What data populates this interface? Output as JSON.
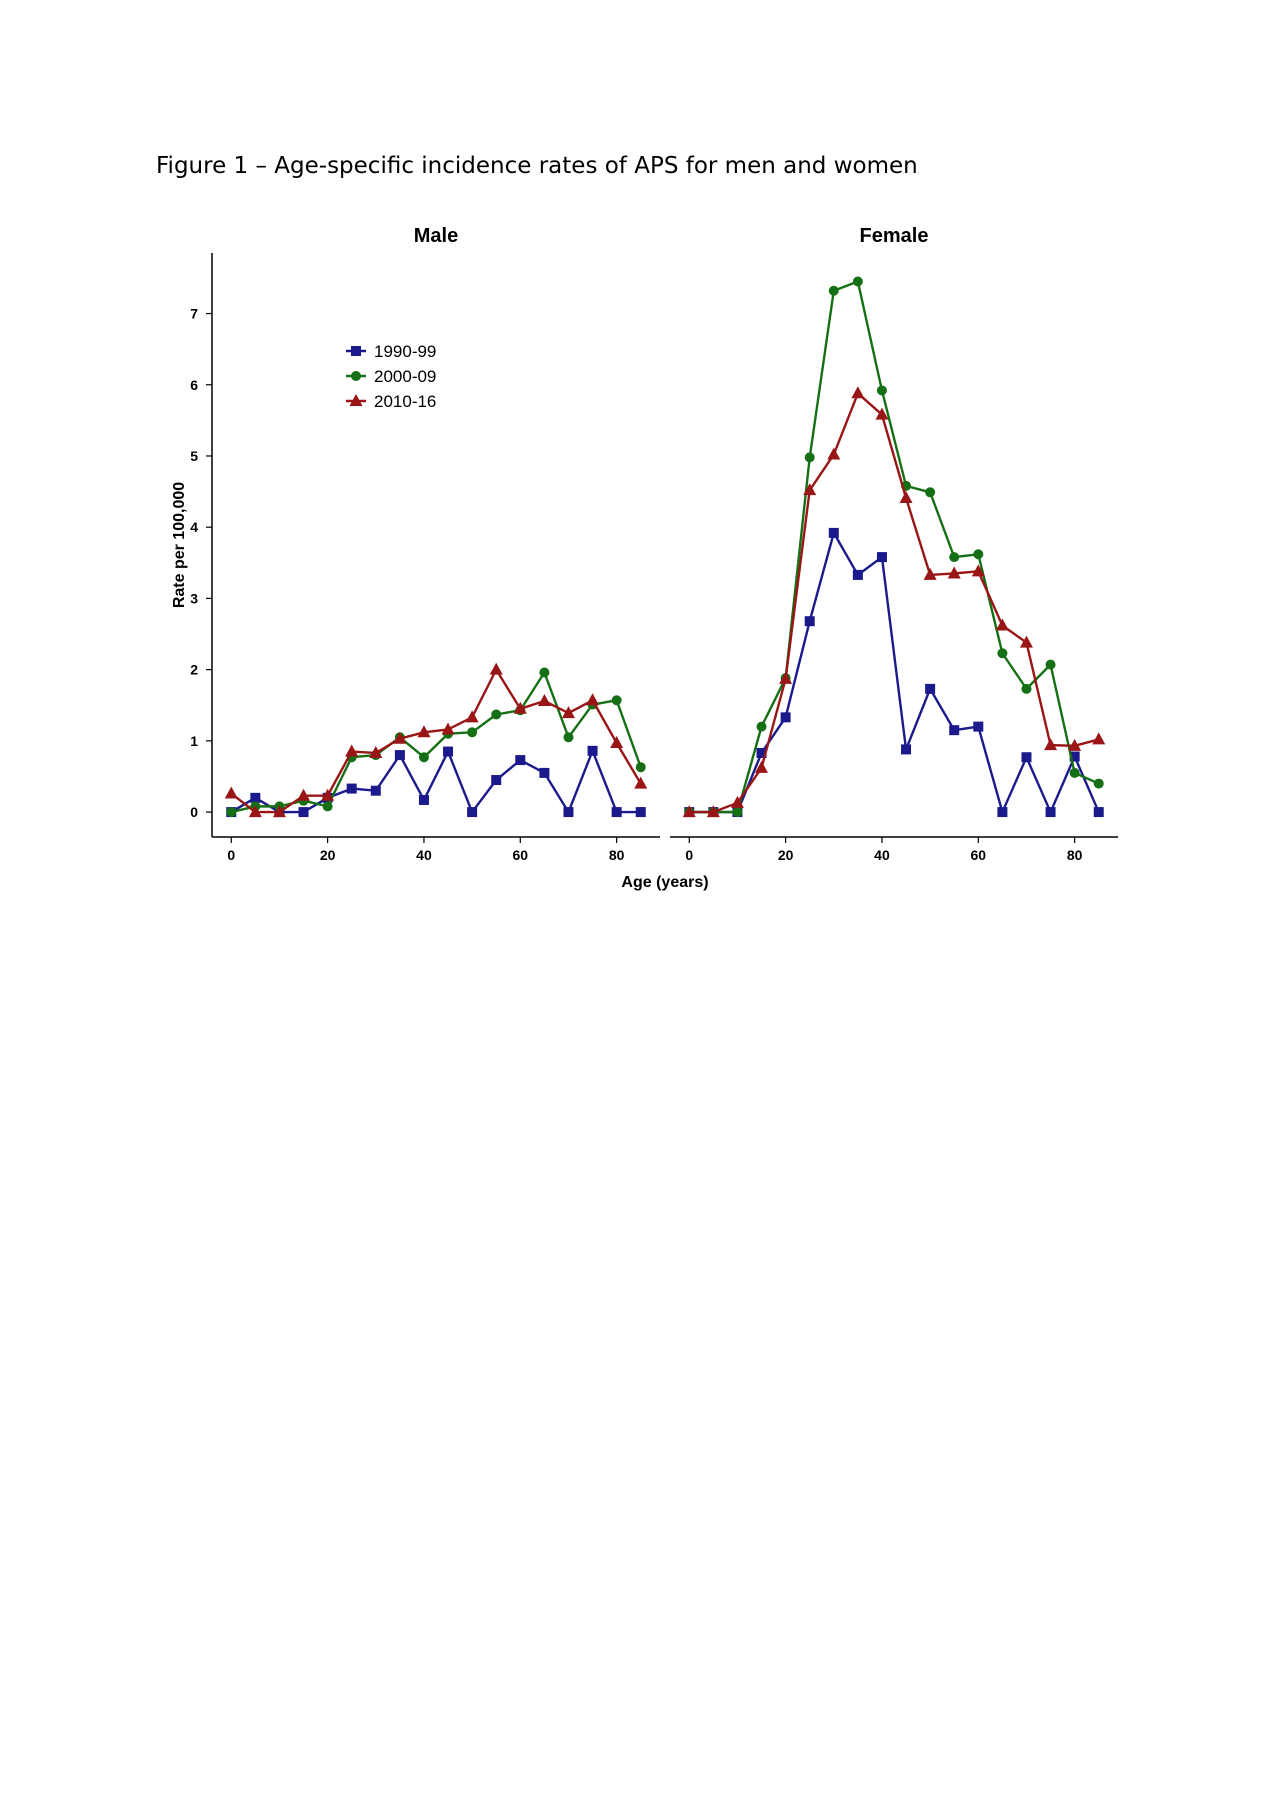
{
  "figure_title": "Figure 1 – Age-specific incidence rates of APS for men and women",
  "chart_data": {
    "type": "line",
    "xlabel": "Age (years)",
    "ylabel": "Rate per 100,000",
    "xlim": [
      -4,
      89
    ],
    "ylim": [
      -0.35,
      7.85
    ],
    "x_ticks": [
      0,
      20,
      40,
      60,
      80
    ],
    "y_ticks": [
      0,
      1,
      2,
      3,
      4,
      5,
      6,
      7
    ],
    "legend_position": "upper-left of Male panel",
    "x": [
      0,
      5,
      10,
      15,
      20,
      25,
      30,
      35,
      40,
      45,
      50,
      55,
      60,
      65,
      70,
      75,
      80,
      85
    ],
    "series_styles": [
      {
        "name": "1990-99",
        "color": "#1a1a8c",
        "marker": "square"
      },
      {
        "name": "2000-09",
        "color": "#157015",
        "marker": "circle"
      },
      {
        "name": "2010-16",
        "color": "#9a1616",
        "marker": "triangle"
      }
    ],
    "panels": [
      {
        "title": "Male",
        "series": [
          {
            "name": "1990-99",
            "values": [
              0.0,
              0.2,
              0.0,
              0.0,
              0.2,
              0.33,
              0.3,
              0.8,
              0.17,
              0.85,
              0.0,
              0.45,
              0.73,
              0.55,
              0.0,
              0.86,
              0.0,
              0.0
            ]
          },
          {
            "name": "2000-09",
            "values": [
              0.0,
              0.08,
              0.08,
              0.16,
              0.08,
              0.77,
              0.8,
              1.05,
              0.77,
              1.1,
              1.12,
              1.37,
              1.43,
              1.96,
              1.05,
              1.51,
              1.57,
              0.63
            ]
          },
          {
            "name": "2010-16",
            "values": [
              0.26,
              0.0,
              0.0,
              0.23,
              0.23,
              0.85,
              0.83,
              1.03,
              1.12,
              1.16,
              1.33,
              2.0,
              1.45,
              1.56,
              1.39,
              1.57,
              0.97,
              0.4
            ]
          }
        ]
      },
      {
        "title": "Female",
        "series": [
          {
            "name": "1990-99",
            "values": [
              0.0,
              0.0,
              0.0,
              0.83,
              1.33,
              2.68,
              3.92,
              3.33,
              3.58,
              0.88,
              1.73,
              1.15,
              1.2,
              0.0,
              0.77,
              0.0,
              0.78,
              0.0
            ]
          },
          {
            "name": "2000-09",
            "values": [
              0.0,
              0.0,
              0.0,
              1.2,
              1.88,
              4.98,
              7.32,
              7.45,
              5.92,
              4.58,
              4.49,
              3.58,
              3.62,
              2.23,
              1.73,
              2.07,
              0.55,
              0.4
            ]
          },
          {
            "name": "2010-16",
            "values": [
              0.0,
              0.0,
              0.13,
              0.62,
              1.87,
              4.52,
              5.02,
              5.88,
              5.58,
              4.41,
              3.33,
              3.35,
              3.38,
              2.62,
              2.38,
              0.94,
              0.93,
              1.02
            ]
          }
        ]
      }
    ]
  }
}
